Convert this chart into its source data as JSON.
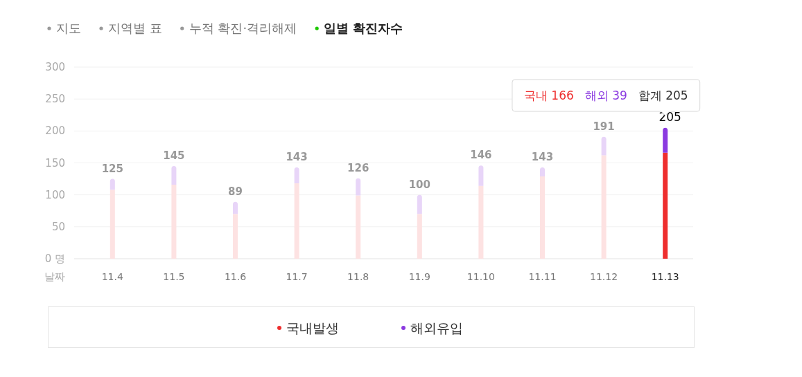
{
  "chart_data": {
    "type": "bar",
    "stacked": true,
    "categories": [
      "11.4",
      "11.5",
      "11.6",
      "11.7",
      "11.8",
      "11.9",
      "11.10",
      "11.11",
      "11.12",
      "11.13"
    ],
    "series": [
      {
        "name": "국내발생",
        "color": "#ee2e2e",
        "colors": [
          "#fde2e2",
          "#fde2e2",
          "#fde2e2",
          "#fde2e2",
          "#fde2e2",
          "#fde2e2",
          "#fde2e2",
          "#fde2e2",
          "#fde2e2",
          "#ee2e2e"
        ],
        "values": [
          108,
          116,
          70,
          118,
          99,
          70,
          114,
          129,
          162,
          166
        ]
      },
      {
        "name": "해외유입",
        "color": "#8b3ae0",
        "colors": [
          "#e8d5f8",
          "#e8d5f8",
          "#e8d5f8",
          "#e8d5f8",
          "#e8d5f8",
          "#e8d5f8",
          "#e8d5f8",
          "#e8d5f8",
          "#e8d5f8",
          "#8b3ae0"
        ],
        "values": [
          17,
          29,
          19,
          25,
          27,
          30,
          32,
          14,
          29,
          39
        ]
      }
    ],
    "totals": [
      "125",
      "145",
      "89",
      "143",
      "126",
      "100",
      "146",
      "143",
      "191",
      "205"
    ],
    "ylim": [
      0,
      300
    ],
    "yticks": [
      {
        "value": 0,
        "label": "0 명"
      },
      50,
      100,
      150,
      200,
      250,
      300
    ],
    "xlabel": "날짜",
    "grid": "y",
    "legend": "bottom",
    "annotations": [
      "지도",
      "지역별 표",
      "누적 확진·격리해제",
      "일별 확진자수",
      "국내 166",
      "해외 39",
      "합계 205"
    ]
  }
}
